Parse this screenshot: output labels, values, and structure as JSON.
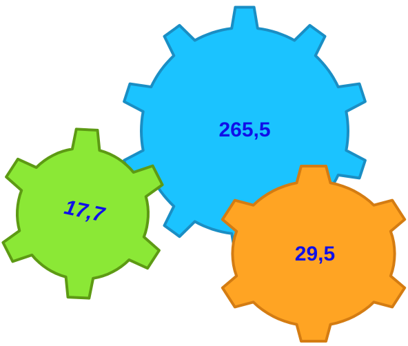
{
  "gears": [
    {
      "label": "265,5"
    },
    {
      "label": "17,7"
    },
    {
      "label": "29,5"
    }
  ]
}
